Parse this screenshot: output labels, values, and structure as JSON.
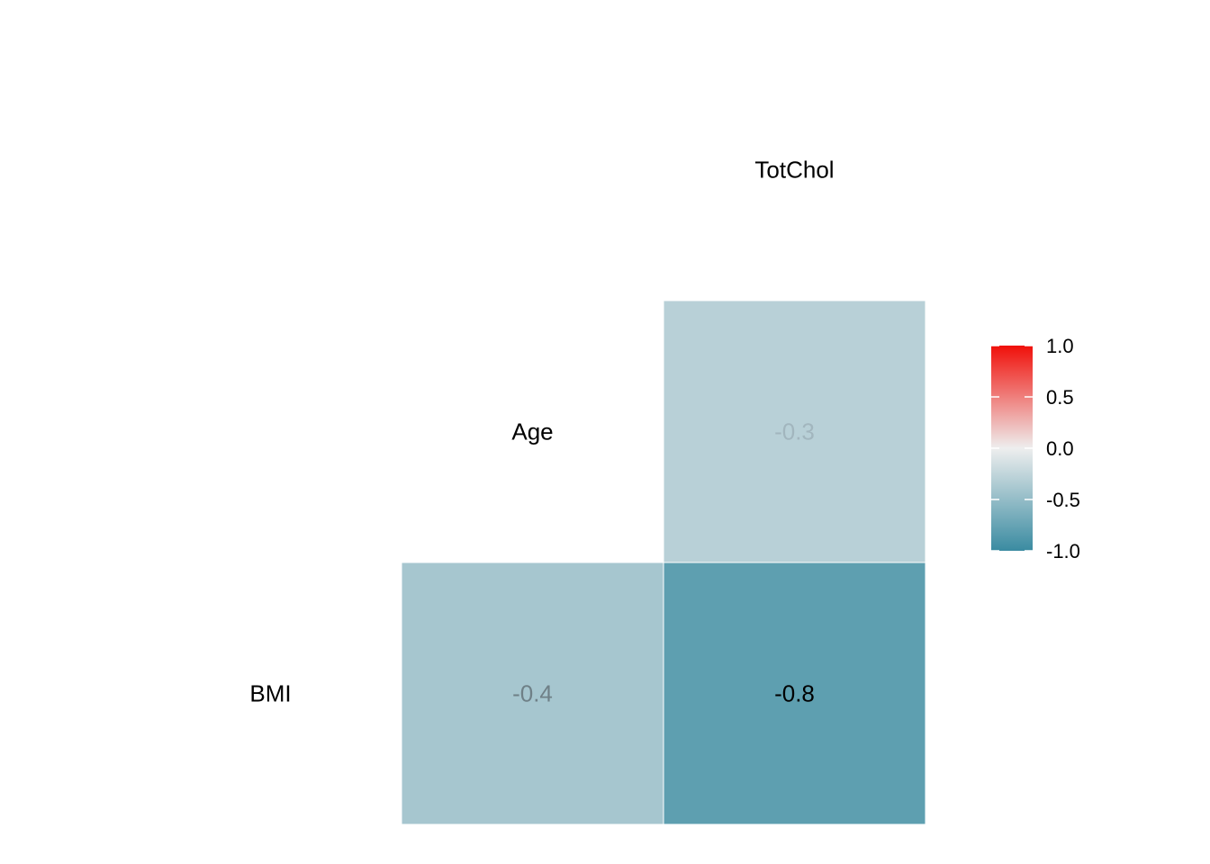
{
  "chart_data": {
    "type": "heatmap",
    "title": "",
    "xlabel": "",
    "ylabel": "",
    "variables": [
      "BMI",
      "Age",
      "TotChol"
    ],
    "cells": [
      {
        "row": "Age",
        "col": "TotChol",
        "value": -0.3,
        "label": "-0.3"
      },
      {
        "row": "BMI",
        "col": "Age",
        "value": -0.4,
        "label": "-0.4"
      },
      {
        "row": "BMI",
        "col": "TotChol",
        "value": -0.8,
        "label": "-0.8"
      }
    ],
    "color_scale": {
      "limits": [
        -1.0,
        1.0
      ],
      "low_color": "#3A8BA1",
      "mid_color": "#EEEEEE",
      "high_color": "#F0100A",
      "ticks": [
        "1.0",
        "0.5",
        "0.0",
        "-0.5",
        "-1.0"
      ],
      "tick_values": [
        1.0,
        0.5,
        0.0,
        -0.5,
        -1.0
      ]
    },
    "legend_position": "right",
    "grid": false
  }
}
